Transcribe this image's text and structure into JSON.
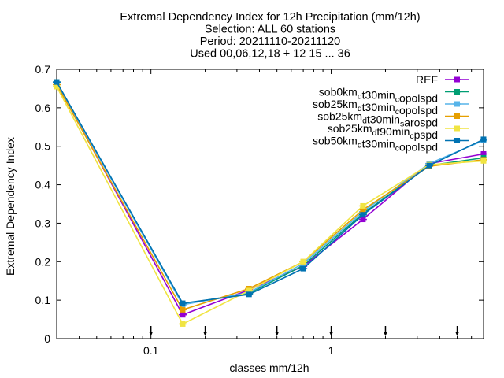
{
  "chart_data": {
    "type": "line",
    "title_lines": [
      "Extremal Dependency Index  for 12h Precipitation (mm/12h)",
      "Selection: ALL     60 stations",
      "Period: 20211110-20211120",
      "Used 00,06,12,18 + 12 15 ... 36"
    ],
    "xlabel": "classes mm/12h",
    "ylabel": "Extremal Dependency Index",
    "x_scale": "log",
    "xlim": [
      0.03,
      7
    ],
    "ylim": [
      0,
      0.7
    ],
    "x_ticks": [
      {
        "value": 0.1,
        "label": "0.1"
      },
      {
        "value": 1,
        "label": "1"
      }
    ],
    "y_ticks": [
      {
        "value": 0,
        "label": "0"
      },
      {
        "value": 0.1,
        "label": "0.1"
      },
      {
        "value": 0.2,
        "label": "0.2"
      },
      {
        "value": 0.3,
        "label": "0.3"
      },
      {
        "value": 0.4,
        "label": "0.4"
      },
      {
        "value": 0.5,
        "label": "0.5"
      },
      {
        "value": 0.6,
        "label": "0.6"
      },
      {
        "value": 0.7,
        "label": "0.7"
      }
    ],
    "x": [
      0.03,
      0.15,
      0.35,
      0.7,
      1.5,
      3.5,
      7
    ],
    "threshold_markers": [
      0.1,
      0.2,
      0.5,
      1,
      2,
      5
    ],
    "legend_position": "top-right",
    "grid": false,
    "series": [
      {
        "name": "REF",
        "name_parts": [
          {
            "text": "REF",
            "sub": false
          }
        ],
        "color": "#9400d3",
        "values": [
          0.665,
          0.062,
          0.127,
          0.188,
          0.31,
          0.455,
          0.48
        ]
      },
      {
        "name": "sob0km_dt30min_copolspd",
        "name_parts": [
          {
            "text": "sob0km",
            "sub": false
          },
          {
            "text": "d",
            "sub": true
          },
          {
            "text": "t30min",
            "sub": false
          },
          {
            "text": "c",
            "sub": true
          },
          {
            "text": "opolspd",
            "sub": false
          }
        ],
        "color": "#009e73",
        "values": [
          0.667,
          0.09,
          0.118,
          0.19,
          0.325,
          0.45,
          0.47
        ]
      },
      {
        "name": "sob25km_dt30min_copolspd",
        "name_parts": [
          {
            "text": "sob25km",
            "sub": false
          },
          {
            "text": "d",
            "sub": true
          },
          {
            "text": "t30min",
            "sub": false
          },
          {
            "text": "c",
            "sub": true
          },
          {
            "text": "opolspd",
            "sub": false
          }
        ],
        "color": "#56b4e9",
        "values": [
          0.665,
          0.088,
          0.12,
          0.195,
          0.33,
          0.455,
          0.515
        ]
      },
      {
        "name": "sob25km_dt30min_sarospd",
        "name_parts": [
          {
            "text": "sob25km",
            "sub": false
          },
          {
            "text": "d",
            "sub": true
          },
          {
            "text": "t30min",
            "sub": false
          },
          {
            "text": "s",
            "sub": true
          },
          {
            "text": "arospd",
            "sub": false
          }
        ],
        "color": "#e69f00",
        "values": [
          0.66,
          0.075,
          0.13,
          0.2,
          0.335,
          0.448,
          0.465
        ]
      },
      {
        "name": "sob25km_dt90min_cpspd",
        "name_parts": [
          {
            "text": "sob25km",
            "sub": false
          },
          {
            "text": "d",
            "sub": true
          },
          {
            "text": "t90min",
            "sub": false
          },
          {
            "text": "c",
            "sub": true
          },
          {
            "text": "pspd",
            "sub": false
          }
        ],
        "color": "#f0e442",
        "values": [
          0.655,
          0.038,
          0.125,
          0.2,
          0.345,
          0.452,
          0.462
        ]
      },
      {
        "name": "sob50km_dt30min_copolspd",
        "name_parts": [
          {
            "text": "sob50km",
            "sub": false
          },
          {
            "text": "d",
            "sub": true
          },
          {
            "text": "t30min",
            "sub": false
          },
          {
            "text": "c",
            "sub": true
          },
          {
            "text": "opolspd",
            "sub": false
          }
        ],
        "color": "#0072b2",
        "values": [
          0.667,
          0.092,
          0.115,
          0.182,
          0.322,
          0.45,
          0.518
        ]
      }
    ]
  }
}
